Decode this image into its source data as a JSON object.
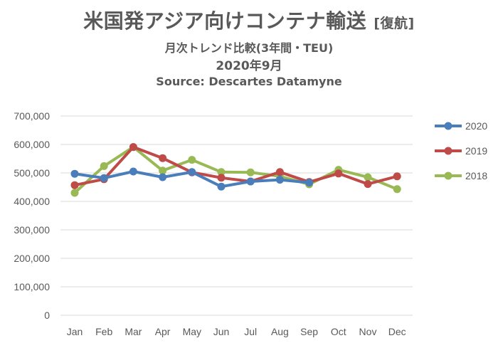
{
  "chart_data": {
    "type": "line",
    "title": "米国発アジア向けコンテナ輸送",
    "title_suffix": "[復航]",
    "subtitle": "月次トレンド比較(3年間・TEU)",
    "period": "2020年9月",
    "source": "Source: Descartes Datamyne",
    "categories": [
      "Jan",
      "Feb",
      "Mar",
      "Apr",
      "May",
      "Jun",
      "Jul",
      "Aug",
      "Sep",
      "Oct",
      "Nov",
      "Dec"
    ],
    "ylim": [
      0,
      700000
    ],
    "yticks": [
      0,
      100000,
      200000,
      300000,
      400000,
      500000,
      600000,
      700000
    ],
    "ytick_labels": [
      "0",
      "100,000",
      "200,000",
      "300,000",
      "400,000",
      "500,000",
      "600,000",
      "700,000"
    ],
    "grid": true,
    "legend_position": "right",
    "series": [
      {
        "name": "2020",
        "color": "#4a7ebb",
        "values": [
          497000,
          482000,
          505000,
          485000,
          503000,
          452000,
          470000,
          476000,
          466000,
          null,
          null,
          null
        ]
      },
      {
        "name": "2019",
        "color": "#be4b48",
        "values": [
          457000,
          478000,
          591000,
          552000,
          502000,
          483000,
          470000,
          503000,
          468000,
          498000,
          461000,
          488000
        ]
      },
      {
        "name": "2018",
        "color": "#98b954",
        "values": [
          430000,
          524000,
          591000,
          508000,
          546000,
          503000,
          502000,
          488000,
          460000,
          511000,
          485000,
          443000
        ]
      }
    ]
  }
}
